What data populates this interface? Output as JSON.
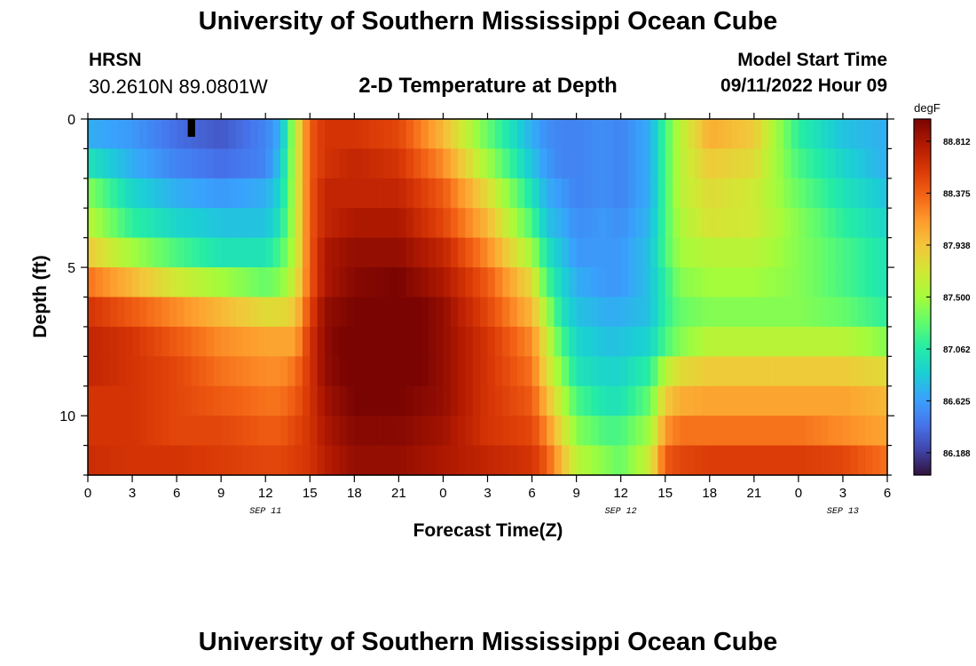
{
  "header": {
    "title": "University of Southern Mississippi Ocean Cube",
    "station": "HRSN",
    "coords": "30.2610N  89.0801W",
    "subtitle": "2-D Temperature at Depth",
    "model_label": "Model Start Time",
    "model_time": "09/11/2022 Hour 09"
  },
  "footer": {
    "title": "University of Southern Mississippi Ocean Cube"
  },
  "colors": {
    "palette": [
      "#30123b",
      "#4145ab",
      "#4675ed",
      "#39a2fc",
      "#1bcfd4",
      "#24eca6",
      "#61fc6c",
      "#a4fc3b",
      "#d1e834",
      "#f3c63a",
      "#fe9b2d",
      "#f36315",
      "#d93806",
      "#b11901",
      "#7a0402"
    ],
    "marker": "#000000"
  },
  "chart_data": {
    "type": "heatmap",
    "xlabel": "Forecast Time(Z)",
    "ylabel": "Depth (ft)",
    "x_tick_labels": [
      "0",
      "3",
      "6",
      "9",
      "12",
      "15",
      "18",
      "21",
      "0",
      "3",
      "6",
      "9",
      "12",
      "15",
      "18",
      "21",
      "0",
      "3",
      "6"
    ],
    "x_range_hours": [
      0,
      54
    ],
    "date_labels": [
      {
        "text": "SEP 11",
        "hour": 12
      },
      {
        "text": "SEP 12",
        "hour": 36
      },
      {
        "text": "SEP 13",
        "hour": 51
      }
    ],
    "y_tick_labels": [
      "0",
      "5",
      "10"
    ],
    "y_tick_values": [
      0,
      5,
      10
    ],
    "y_range_ft": [
      0,
      12
    ],
    "depth_levels_ft": [
      0.5,
      1.5,
      2.5,
      3.5,
      4.5,
      5.5,
      6.5,
      7.5,
      8.5,
      9.5,
      10.5,
      11.5
    ],
    "colorbar": {
      "unit": "degF",
      "tick_labels": [
        "88.812",
        "88.375",
        "87.938",
        "87.500",
        "87.062",
        "86.625",
        "86.188"
      ],
      "tick_values": [
        88.812,
        88.375,
        87.938,
        87.5,
        87.062,
        86.625,
        86.188
      ],
      "range": [
        86.0,
        89.0
      ]
    },
    "marker": {
      "hour": 7,
      "depth_ft": 0.3
    },
    "anchor_hours": [
      0,
      3,
      6,
      9,
      12,
      13,
      14,
      15,
      16,
      18,
      21,
      24,
      27,
      30,
      31,
      32,
      33,
      35,
      36,
      38,
      39,
      40,
      42,
      45,
      48,
      51,
      54
    ],
    "values_degF": [
      [
        86.7,
        86.6,
        86.4,
        86.3,
        86.5,
        86.7,
        87.6,
        88.4,
        88.6,
        88.6,
        88.5,
        88.0,
        87.3,
        86.7,
        86.55,
        86.5,
        86.5,
        86.55,
        86.5,
        86.7,
        87.2,
        87.6,
        88.05,
        87.9,
        87.1,
        86.8,
        86.7
      ],
      [
        87.0,
        86.7,
        86.5,
        86.4,
        86.5,
        86.8,
        87.6,
        88.4,
        88.6,
        88.7,
        88.6,
        88.2,
        87.5,
        86.8,
        86.6,
        86.5,
        86.5,
        86.55,
        86.5,
        86.7,
        87.2,
        87.6,
        87.9,
        87.8,
        87.2,
        86.9,
        86.7
      ],
      [
        87.4,
        86.9,
        86.7,
        86.6,
        86.7,
        86.9,
        87.6,
        88.4,
        88.7,
        88.7,
        88.7,
        88.4,
        87.8,
        87.0,
        86.7,
        86.6,
        86.5,
        86.55,
        86.5,
        86.7,
        87.2,
        87.6,
        87.8,
        87.7,
        87.3,
        87.0,
        86.8
      ],
      [
        87.6,
        87.1,
        86.9,
        86.8,
        86.8,
        87.0,
        87.6,
        88.4,
        88.7,
        88.8,
        88.8,
        88.5,
        88.0,
        87.2,
        86.8,
        86.7,
        86.55,
        86.6,
        86.55,
        86.75,
        87.2,
        87.55,
        87.75,
        87.7,
        87.4,
        87.1,
        86.9
      ],
      [
        87.9,
        87.5,
        87.2,
        87.0,
        87.0,
        87.2,
        87.6,
        88.4,
        88.8,
        88.9,
        88.9,
        88.7,
        88.2,
        87.5,
        87.0,
        86.8,
        86.6,
        86.6,
        86.6,
        86.8,
        87.2,
        87.5,
        87.6,
        87.6,
        87.4,
        87.2,
        87.0
      ],
      [
        88.3,
        88.0,
        87.7,
        87.5,
        87.3,
        87.4,
        87.7,
        88.4,
        88.8,
        88.95,
        89.0,
        88.8,
        88.4,
        87.8,
        87.2,
        86.9,
        86.7,
        86.6,
        86.6,
        86.8,
        87.1,
        87.4,
        87.5,
        87.5,
        87.4,
        87.2,
        87.0
      ],
      [
        88.6,
        88.4,
        88.2,
        88.0,
        87.8,
        87.8,
        87.9,
        88.5,
        88.9,
        89.0,
        89.1,
        88.9,
        88.5,
        88.0,
        87.5,
        87.0,
        86.8,
        86.7,
        86.7,
        86.8,
        87.1,
        87.3,
        87.4,
        87.4,
        87.4,
        87.3,
        87.1
      ],
      [
        88.7,
        88.6,
        88.4,
        88.2,
        88.1,
        88.1,
        88.1,
        88.6,
        88.9,
        89.1,
        89.1,
        88.9,
        88.6,
        88.2,
        87.7,
        87.2,
        86.9,
        86.8,
        86.8,
        86.9,
        87.2,
        87.4,
        87.6,
        87.6,
        87.6,
        87.6,
        87.4
      ],
      [
        88.7,
        88.6,
        88.5,
        88.3,
        88.2,
        88.2,
        88.3,
        88.6,
        88.9,
        89.05,
        89.1,
        88.9,
        88.6,
        88.3,
        87.8,
        87.4,
        87.0,
        86.9,
        86.9,
        87.1,
        87.6,
        87.8,
        87.9,
        87.9,
        87.9,
        87.9,
        87.8
      ],
      [
        88.6,
        88.6,
        88.5,
        88.4,
        88.3,
        88.3,
        88.4,
        88.6,
        88.85,
        89.0,
        89.0,
        88.9,
        88.6,
        88.4,
        88.0,
        87.6,
        87.2,
        87.0,
        87.0,
        87.3,
        87.9,
        88.05,
        88.1,
        88.1,
        88.1,
        88.1,
        88.0
      ],
      [
        88.6,
        88.6,
        88.5,
        88.5,
        88.4,
        88.4,
        88.5,
        88.6,
        88.8,
        88.95,
        88.95,
        88.85,
        88.6,
        88.5,
        88.2,
        87.8,
        87.4,
        87.2,
        87.2,
        87.5,
        88.15,
        88.3,
        88.3,
        88.3,
        88.3,
        88.2,
        88.1
      ],
      [
        88.65,
        88.6,
        88.6,
        88.55,
        88.5,
        88.5,
        88.55,
        88.6,
        88.75,
        88.9,
        88.9,
        88.8,
        88.7,
        88.6,
        88.4,
        88.0,
        87.6,
        87.4,
        87.3,
        87.7,
        88.4,
        88.5,
        88.55,
        88.55,
        88.55,
        88.5,
        88.3
      ]
    ]
  }
}
